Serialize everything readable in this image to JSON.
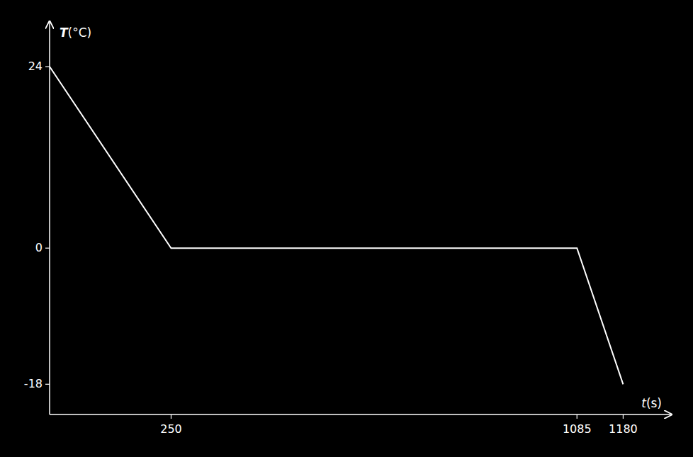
{
  "chart_data": {
    "type": "line",
    "x": [
      0,
      250,
      1085,
      1180
    ],
    "values": [
      24,
      0,
      0,
      -18
    ],
    "color": "#ffffff",
    "xlim": [
      0,
      1280
    ],
    "ylim": [
      -22,
      30
    ],
    "xticks": [
      250,
      1085,
      1180
    ],
    "yticks": [
      -18,
      0,
      24
    ],
    "xlabel": "t(s)",
    "ylabel": "T(°C)",
    "grid": false
  }
}
